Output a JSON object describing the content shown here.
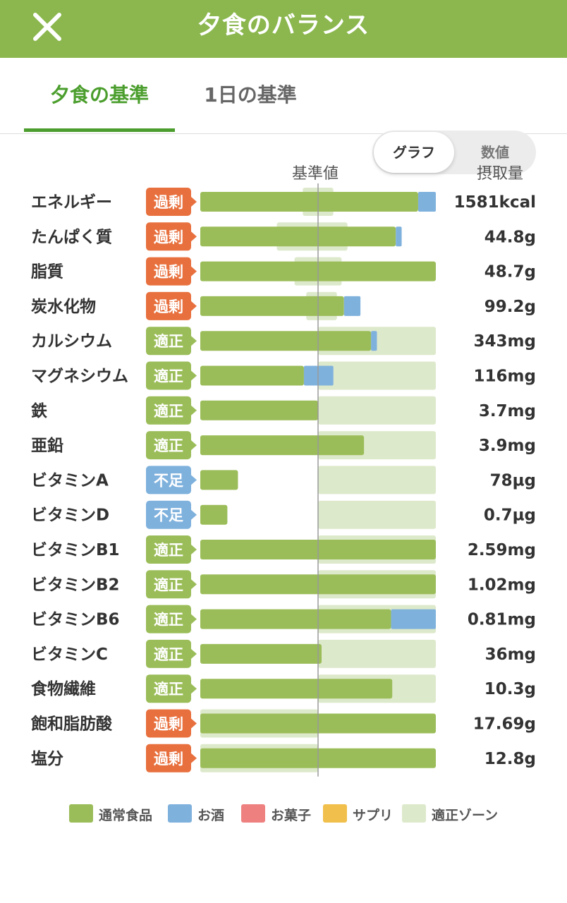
{
  "header": {
    "title": "夕食のバランス",
    "close_icon": "close-icon"
  },
  "tabs": [
    {
      "label": "夕食の基準",
      "active": true
    },
    {
      "label": "1日の基準",
      "active": false
    }
  ],
  "view_toggle": {
    "options": [
      "グラフ",
      "数値"
    ],
    "selected": "グラフ"
  },
  "columns": {
    "standard": "基準値",
    "intake": "摂取量"
  },
  "colors": {
    "food": "#9bbd59",
    "alcohol": "#7fb1dd",
    "sweets": "#ee8080",
    "supplement": "#f1bf4c",
    "zone": "#dde9cb",
    "over": "#e8703e",
    "proper": "#9bbd59",
    "lack": "#7fb1dd"
  },
  "status_labels": {
    "over": "過剰",
    "proper": "適正",
    "lack": "不足"
  },
  "chart_data": {
    "type": "bar",
    "orientation": "horizontal",
    "reference_line": "基準値",
    "value_scale_note": "bar lengths relative to standard value (1.0 = 基準値)",
    "rows": [
      {
        "name": "エネルギー",
        "status": "over",
        "intake": "1581kcal",
        "food": 1.85,
        "alcohol": 0.15,
        "zone": [
          0.87,
          1.13
        ]
      },
      {
        "name": "たんぱく質",
        "status": "over",
        "intake": "44.8g",
        "food": 1.66,
        "alcohol": 0.05,
        "zone": [
          0.65,
          1.25
        ]
      },
      {
        "name": "脂質",
        "status": "over",
        "intake": "48.7g",
        "food": 2.0,
        "alcohol": 0,
        "zone": [
          0.8,
          1.2
        ]
      },
      {
        "name": "炭水化物",
        "status": "over",
        "intake": "99.2g",
        "food": 1.22,
        "alcohol": 0.14,
        "zone": [
          0.9,
          1.16
        ]
      },
      {
        "name": "カルシウム",
        "status": "proper",
        "intake": "343mg",
        "food": 1.45,
        "alcohol": 0.05,
        "zone": [
          1.0,
          2.0
        ]
      },
      {
        "name": "マグネシウム",
        "status": "proper",
        "intake": "116mg",
        "food": 0.88,
        "alcohol": 0.25,
        "zone": [
          1.0,
          2.0
        ]
      },
      {
        "name": "鉄",
        "status": "proper",
        "intake": "3.7mg",
        "food": 1.0,
        "alcohol": 0,
        "zone": [
          1.0,
          2.0
        ]
      },
      {
        "name": "亜鉛",
        "status": "proper",
        "intake": "3.9mg",
        "food": 1.39,
        "alcohol": 0,
        "zone": [
          1.0,
          2.0
        ]
      },
      {
        "name": "ビタミンA",
        "status": "lack",
        "intake": "78µg",
        "food": 0.32,
        "alcohol": 0,
        "zone": [
          1.0,
          2.0
        ]
      },
      {
        "name": "ビタミンD",
        "status": "lack",
        "intake": "0.7µg",
        "food": 0.23,
        "alcohol": 0,
        "zone": [
          1.0,
          2.0
        ]
      },
      {
        "name": "ビタミンB1",
        "status": "proper",
        "intake": "2.59mg",
        "food": 2.0,
        "alcohol": 0,
        "zone": [
          1.0,
          2.0
        ]
      },
      {
        "name": "ビタミンB2",
        "status": "proper",
        "intake": "1.02mg",
        "food": 2.0,
        "alcohol": 0,
        "zone": [
          1.0,
          2.0
        ]
      },
      {
        "name": "ビタミンB6",
        "status": "proper",
        "intake": "0.81mg",
        "food": 1.62,
        "alcohol": 0.38,
        "zone": [
          1.0,
          2.0
        ]
      },
      {
        "name": "ビタミンC",
        "status": "proper",
        "intake": "36mg",
        "food": 1.03,
        "alcohol": 0,
        "zone": [
          1.0,
          2.0
        ]
      },
      {
        "name": "食物繊維",
        "status": "proper",
        "intake": "10.3g",
        "food": 1.63,
        "alcohol": 0,
        "zone": [
          1.0,
          2.0
        ]
      },
      {
        "name": "飽和脂肪酸",
        "status": "over",
        "intake": "17.69g",
        "food": 2.0,
        "alcohol": 0,
        "zone": [
          0.0,
          1.0
        ]
      },
      {
        "name": "塩分",
        "status": "over",
        "intake": "12.8g",
        "food": 2.0,
        "alcohol": 0,
        "zone": [
          0.0,
          1.0
        ]
      }
    ]
  },
  "legend": [
    {
      "label": "通常食品",
      "color_key": "food"
    },
    {
      "label": "お酒",
      "color_key": "alcohol"
    },
    {
      "label": "お菓子",
      "color_key": "sweets"
    },
    {
      "label": "サプリ",
      "color_key": "supplement"
    },
    {
      "label": "適正ゾーン",
      "color_key": "zone"
    }
  ]
}
